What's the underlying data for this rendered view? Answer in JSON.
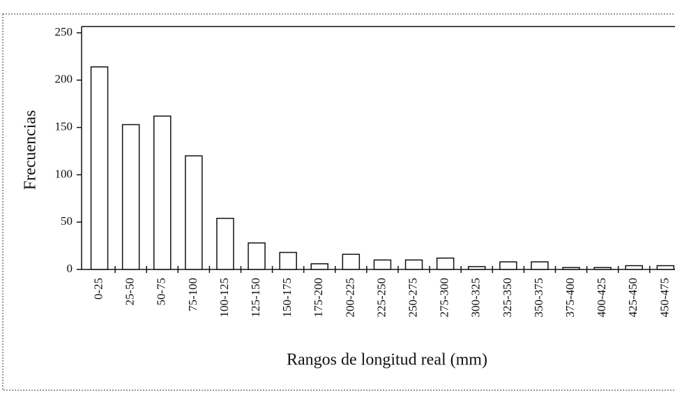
{
  "chart_data": {
    "type": "bar",
    "ylabel": "Frecuencias",
    "xlabel": "Rangos de longitud real (mm)",
    "categories": [
      "0-25",
      "25-50",
      "50-75",
      "75-100",
      "100-125",
      "125-150",
      "150-175",
      "175-200",
      "200-225",
      "225-250",
      "250-275",
      "275-300",
      "300-325",
      "325-350",
      "350-375",
      "375-400",
      "400-425",
      "425-450",
      "450-475"
    ],
    "values": [
      214,
      153,
      162,
      120,
      54,
      28,
      18,
      6,
      16,
      10,
      10,
      12,
      3,
      8,
      8,
      2,
      2,
      4,
      4
    ],
    "color": "#ffffff",
    "ylim": [
      0,
      250
    ],
    "yticks": [
      0,
      50,
      100,
      150,
      200,
      250
    ],
    "grid": false
  }
}
